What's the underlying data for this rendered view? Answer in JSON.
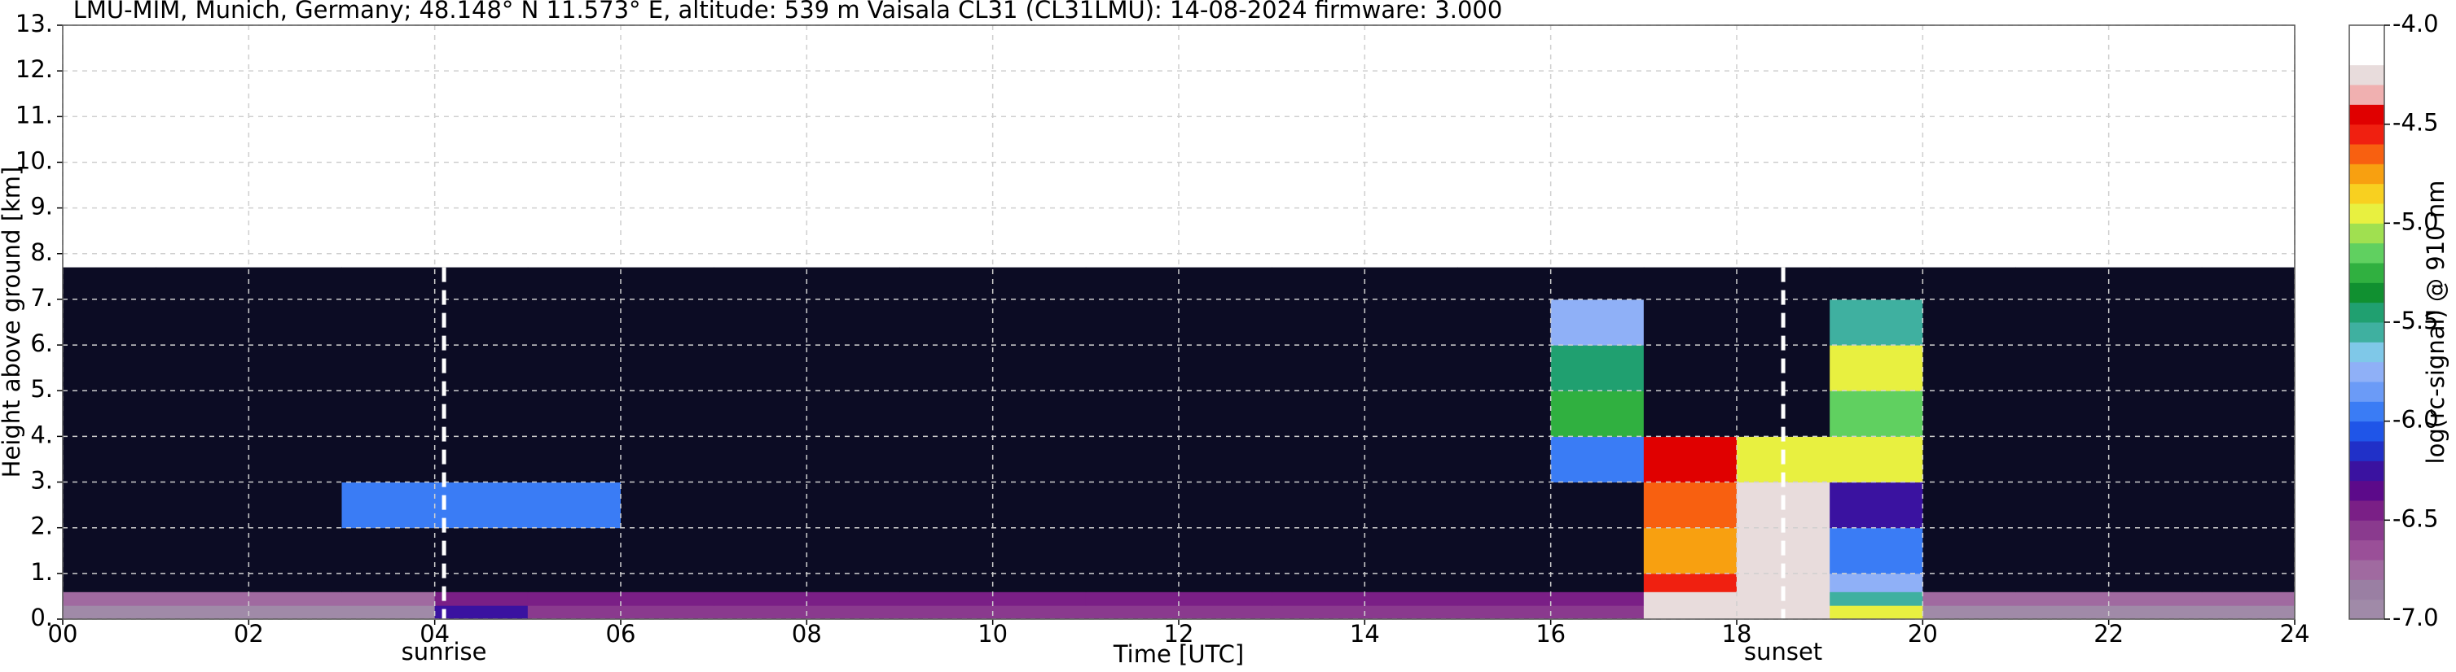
{
  "chart_data": {
    "type": "heatmap",
    "title": "LMU-MIM, Munich, Germany; 48.148° N 11.573° E, altitude: 539 m    Vaisala CL31 (CL31LMU): 14-08-2024    firmware: 3.000",
    "xlabel": "Time [UTC]",
    "ylabel": "Height above ground [km]",
    "colorbar_label": "log(rc-signal) @ 910 nm",
    "xlim": [
      0,
      24
    ],
    "xticks": [
      {
        "value": 0,
        "label": "00"
      },
      {
        "value": 2,
        "label": "02"
      },
      {
        "value": 4,
        "label": "04"
      },
      {
        "value": 6,
        "label": "06"
      },
      {
        "value": 8,
        "label": "08"
      },
      {
        "value": 10,
        "label": "10"
      },
      {
        "value": 12,
        "label": "12"
      },
      {
        "value": 14,
        "label": "14"
      },
      {
        "value": 16,
        "label": "16"
      },
      {
        "value": 18,
        "label": "18"
      },
      {
        "value": 20,
        "label": "20"
      },
      {
        "value": 22,
        "label": "22"
      },
      {
        "value": 24,
        "label": "24"
      }
    ],
    "ylim": [
      0,
      13
    ],
    "yticks": [
      {
        "value": 0,
        "label": "0."
      },
      {
        "value": 1,
        "label": "1."
      },
      {
        "value": 2,
        "label": "2."
      },
      {
        "value": 3,
        "label": "3."
      },
      {
        "value": 4,
        "label": "4."
      },
      {
        "value": 5,
        "label": "5."
      },
      {
        "value": 6,
        "label": "6."
      },
      {
        "value": 7,
        "label": "7."
      },
      {
        "value": 8,
        "label": "8."
      },
      {
        "value": 9,
        "label": "9."
      },
      {
        "value": 10,
        "label": "10."
      },
      {
        "value": 11,
        "label": "11."
      },
      {
        "value": 12,
        "label": "12."
      },
      {
        "value": 13,
        "label": "13."
      }
    ],
    "grid": true,
    "x_edges": [
      0,
      1,
      2,
      3,
      4,
      5,
      6,
      7,
      8,
      9,
      10,
      11,
      12,
      13,
      14,
      15,
      16,
      17,
      18,
      19,
      20,
      21,
      22,
      23,
      24
    ],
    "y_edges": [
      0,
      0.3,
      0.6,
      1,
      2,
      3,
      4,
      5,
      6,
      7,
      7.7
    ],
    "z": [
      [
        -6.9,
        -6.9,
        -6.9,
        -6.9,
        -6.2,
        -6.6,
        -6.6,
        -6.6,
        -6.6,
        -6.6,
        -6.6,
        -6.6,
        -6.6,
        -6.6,
        -6.6,
        -6.6,
        -6.6,
        -4.2,
        -4.2,
        -5.0,
        -6.9,
        -6.9,
        -6.9,
        -6.9
      ],
      [
        -6.7,
        -6.7,
        -6.7,
        -6.7,
        -6.5,
        -6.5,
        -6.5,
        -6.5,
        -6.5,
        -6.5,
        -6.5,
        -6.5,
        -6.5,
        -6.5,
        -6.5,
        -6.5,
        -6.5,
        -4.3,
        -4.2,
        -5.6,
        -6.7,
        -6.7,
        -6.7,
        -6.7
      ],
      [
        -7.05,
        -7.05,
        -7.05,
        -7.05,
        -7.05,
        -7.05,
        -7.05,
        -7.05,
        -7.05,
        -7.05,
        -7.05,
        -7.05,
        -7.05,
        -7.05,
        -7.05,
        -7.05,
        -7.05,
        -4.6,
        -4.2,
        -5.8,
        -7.05,
        -7.05,
        -7.05,
        -7.05
      ],
      [
        -7.1,
        -7.1,
        -7.1,
        -7.1,
        -7.1,
        -7.1,
        -7.1,
        -7.1,
        -7.1,
        -7.1,
        -7.1,
        -7.1,
        -7.1,
        -7.1,
        -7.1,
        -7.1,
        -7.1,
        -4.8,
        -4.2,
        -6.0,
        -7.1,
        -7.1,
        -7.1,
        -7.1
      ],
      [
        -7.1,
        -7.1,
        -7.1,
        -6.0,
        -6.0,
        -6.0,
        -7.1,
        -7.1,
        -7.1,
        -7.1,
        -7.1,
        -7.1,
        -7.1,
        -7.1,
        -7.1,
        -7.1,
        -7.1,
        -4.7,
        -4.3,
        -6.2,
        -7.1,
        -7.1,
        -7.1,
        -7.1
      ],
      [
        -7.1,
        -7.1,
        -7.1,
        -7.1,
        -7.1,
        -7.1,
        -7.1,
        -7.1,
        -7.1,
        -7.1,
        -7.1,
        -7.1,
        -7.1,
        -7.1,
        -7.1,
        -7.1,
        -5.9,
        -4.5,
        -5.0,
        -5.0,
        -7.1,
        -7.1,
        -7.1,
        -7.1
      ],
      [
        -7.1,
        -7.1,
        -7.1,
        -7.1,
        -7.1,
        -7.1,
        -7.1,
        -7.1,
        -7.1,
        -7.1,
        -7.1,
        -7.1,
        -7.1,
        -7.1,
        -7.1,
        -7.1,
        -5.3,
        -7.1,
        -7.1,
        -5.2,
        -7.1,
        -7.1,
        -7.1,
        -7.1
      ],
      [
        -7.1,
        -7.1,
        -7.1,
        -7.1,
        -7.1,
        -7.1,
        -7.1,
        -7.1,
        -7.1,
        -7.1,
        -7.1,
        -7.1,
        -7.1,
        -7.1,
        -7.1,
        -7.1,
        -5.5,
        -7.1,
        -7.1,
        -5.0,
        -7.1,
        -7.1,
        -7.1,
        -7.1
      ],
      [
        -7.1,
        -7.1,
        -7.1,
        -7.1,
        -7.1,
        -7.1,
        -7.1,
        -7.1,
        -7.1,
        -7.1,
        -7.1,
        -7.1,
        -7.1,
        -7.1,
        -7.1,
        -7.1,
        -5.8,
        -7.1,
        -7.1,
        -5.6,
        -7.1,
        -7.1,
        -7.1,
        -7.1
      ],
      [
        -7.1,
        -7.1,
        -7.1,
        -7.1,
        -7.1,
        -7.1,
        -7.1,
        -7.1,
        -7.1,
        -7.1,
        -7.1,
        -7.1,
        -7.1,
        -7.1,
        -7.1,
        -7.1,
        -7.1,
        -7.1,
        -7.1,
        -7.1,
        -7.1,
        -7.1,
        -7.1,
        -7.1
      ]
    ],
    "clim": [
      -7,
      -4
    ],
    "colormap": [
      "#a08aa8",
      "#9a7fa3",
      "#a06aa0",
      "#9a4f98",
      "#8a3a8e",
      "#7a1f86",
      "#5c0a8a",
      "#3a12a0",
      "#2030c8",
      "#1f55e8",
      "#3a7cf5",
      "#6b9bf7",
      "#8fb0f7",
      "#7fc8e8",
      "#3fb0a0",
      "#20a070",
      "#109030",
      "#30b040",
      "#60d060",
      "#a0e050",
      "#e8f040",
      "#f8d020",
      "#f8a010",
      "#f86010",
      "#f02010",
      "#e00000",
      "#f0b0b0",
      "#e8dcdc",
      "#ffffff",
      "#ffffff"
    ],
    "under_color": "#0c0c24",
    "cbar_ticks": [
      {
        "value": -4,
        "label": "-4.0"
      },
      {
        "value": -4.5,
        "label": "-4.5"
      },
      {
        "value": -5,
        "label": "-5.0"
      },
      {
        "value": -5.5,
        "label": "-5.5"
      },
      {
        "value": -6,
        "label": "-6.0"
      },
      {
        "value": -6.5,
        "label": "-6.5"
      },
      {
        "value": -7,
        "label": "-7.0"
      }
    ],
    "annotations": [
      {
        "x": 4.1,
        "text": "sunrise"
      },
      {
        "x": 18.5,
        "text": "sunset"
      }
    ]
  }
}
